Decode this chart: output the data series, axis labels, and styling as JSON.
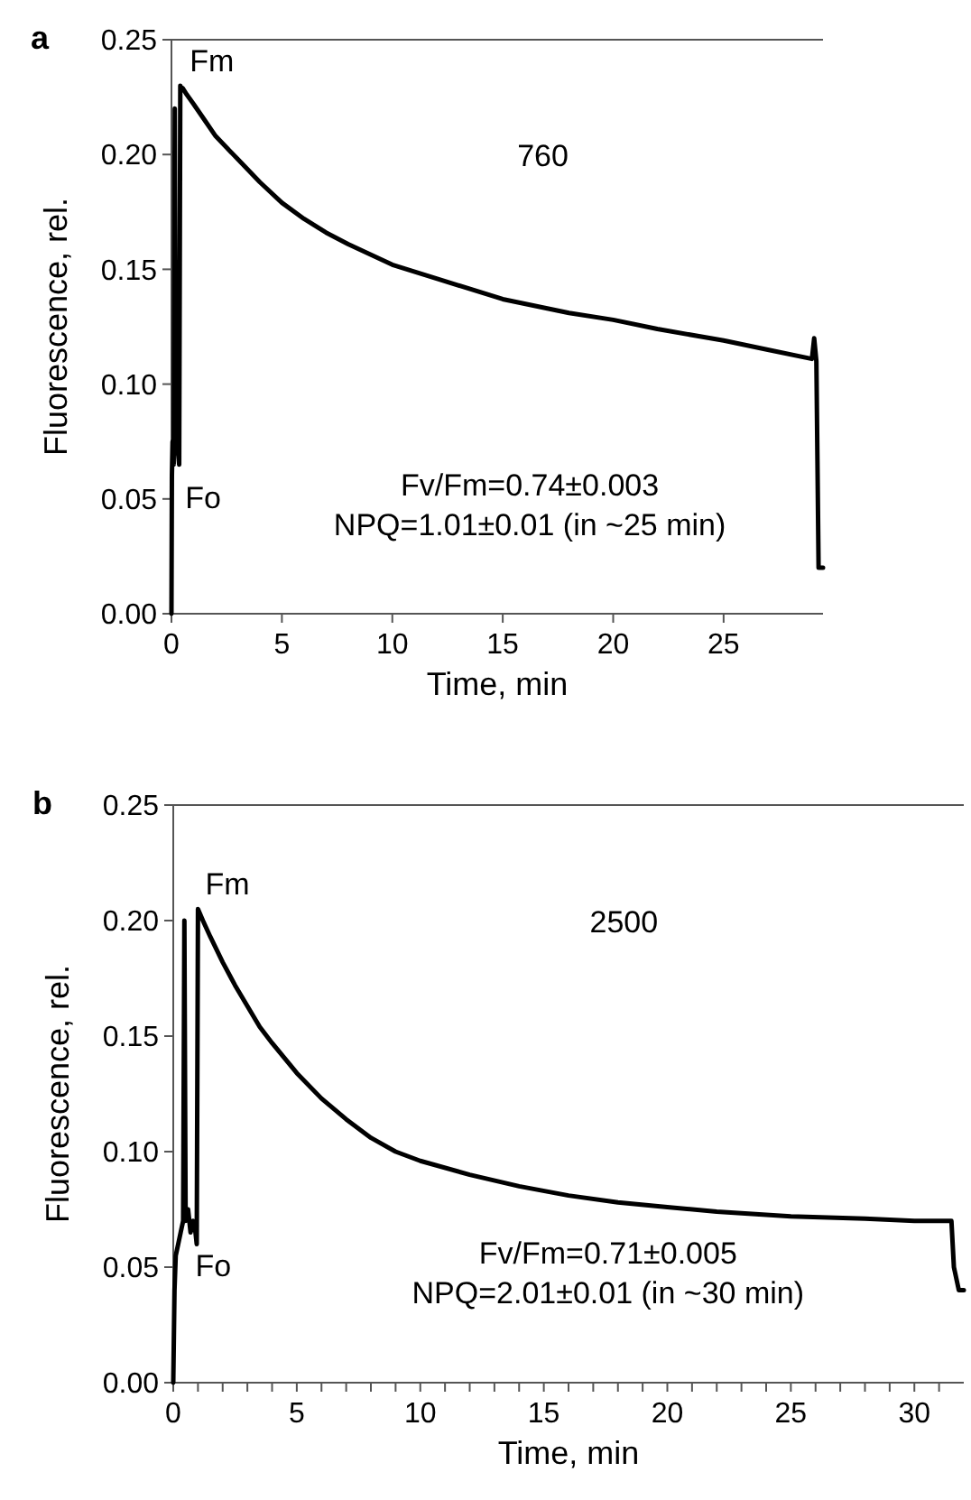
{
  "chart_data": [
    {
      "type": "line",
      "title": "a",
      "xlabel": "Time, min",
      "ylabel": "Fluorescence, rel.",
      "xlim": [
        0,
        29.5
      ],
      "ylim": [
        0,
        0.25
      ],
      "xticks": [
        0,
        5,
        10,
        15,
        20,
        25
      ],
      "yticks": [
        {
          "value": 0,
          "label": "0.00"
        },
        {
          "value": 0.05,
          "label": "0.05"
        },
        {
          "value": 0.1,
          "label": "0.10"
        },
        {
          "value": 0.15,
          "label": "0.15"
        },
        {
          "value": 0.2,
          "label": "0.20"
        },
        {
          "value": 0.25,
          "label": "0.25"
        }
      ],
      "grid": false,
      "marker": "none",
      "line_style": "solid",
      "series": [
        {
          "color": "#000000",
          "x": [
            0,
            0.02,
            0.05,
            0.1,
            0.15,
            0.2,
            0.25,
            0.3,
            0.35,
            0.4,
            0.45,
            0.5,
            0.7,
            1,
            1.5,
            2,
            3,
            4,
            5,
            6,
            7,
            8,
            10,
            12,
            15,
            18,
            20,
            22,
            25,
            27,
            29,
            29.1,
            29.2,
            29.3,
            29.5
          ],
          "values": [
            0,
            0.06,
            0.075,
            0.065,
            0.22,
            0.07,
            0.08,
            0.07,
            0.065,
            0.23,
            0.228,
            0.229,
            0.226,
            0.222,
            0.215,
            0.208,
            0.198,
            0.188,
            0.179,
            0.172,
            0.166,
            0.161,
            0.152,
            0.146,
            0.137,
            0.131,
            0.128,
            0.124,
            0.119,
            0.115,
            0.111,
            0.12,
            0.11,
            0.02,
            0.02
          ]
        }
      ],
      "annotations": [
        {
          "text": "Fm",
          "x": 0.5,
          "y": 0.23
        },
        {
          "text": "Fo",
          "x": 0.3,
          "y": 0.065
        },
        "760",
        "Fv/Fm=0.74±0.003",
        "NPQ=1.01±0.01 (in ~25 min)"
      ]
    },
    {
      "type": "line",
      "title": "b",
      "xlabel": "Time, min",
      "ylabel": "Fluorescence, rel.",
      "xlim": [
        0,
        32
      ],
      "ylim": [
        0,
        0.25
      ],
      "xticks": [
        0,
        {
          "value": 1,
          "label": null
        },
        {
          "value": 2,
          "label": null
        },
        {
          "value": 3,
          "label": null
        },
        {
          "value": 4,
          "label": null
        },
        5,
        {
          "value": 6,
          "label": null
        },
        {
          "value": 7,
          "label": null
        },
        {
          "value": 8,
          "label": null
        },
        {
          "value": 9,
          "label": null
        },
        10,
        {
          "value": 11,
          "label": null
        },
        {
          "value": 12,
          "label": null
        },
        {
          "value": 13,
          "label": null
        },
        {
          "value": 14,
          "label": null
        },
        15,
        {
          "value": 16,
          "label": null
        },
        {
          "value": 17,
          "label": null
        },
        {
          "value": 18,
          "label": null
        },
        {
          "value": 19,
          "label": null
        },
        20,
        {
          "value": 21,
          "label": null
        },
        {
          "value": 22,
          "label": null
        },
        {
          "value": 23,
          "label": null
        },
        {
          "value": 24,
          "label": null
        },
        25,
        {
          "value": 26,
          "label": null
        },
        {
          "value": 27,
          "label": null
        },
        {
          "value": 28,
          "label": null
        },
        {
          "value": 29,
          "label": null
        },
        30,
        {
          "value": 31,
          "label": null
        }
      ],
      "yticks": [
        {
          "value": 0,
          "label": "0.00"
        },
        {
          "value": 0.05,
          "label": "0.05"
        },
        {
          "value": 0.1,
          "label": "0.10"
        },
        {
          "value": 0.15,
          "label": "0.15"
        },
        {
          "value": 0.2,
          "label": "0.20"
        },
        {
          "value": 0.25,
          "label": "0.25"
        }
      ],
      "grid": false,
      "marker": "none",
      "line_style": "solid",
      "series": [
        {
          "color": "#000000",
          "x": [
            0,
            0.05,
            0.1,
            0.2,
            0.3,
            0.4,
            0.45,
            0.5,
            0.6,
            0.7,
            0.8,
            0.9,
            0.95,
            1,
            1.2,
            1.5,
            2,
            2.5,
            3,
            3.5,
            4,
            5,
            6,
            7,
            8,
            9,
            10,
            12,
            14,
            16,
            18,
            20,
            22,
            25,
            28,
            30,
            31.5,
            31.6,
            31.8,
            32
          ],
          "values": [
            0,
            0.04,
            0.055,
            0.06,
            0.065,
            0.07,
            0.2,
            0.07,
            0.075,
            0.065,
            0.07,
            0.065,
            0.06,
            0.205,
            0.2,
            0.193,
            0.182,
            0.172,
            0.163,
            0.154,
            0.147,
            0.134,
            0.123,
            0.114,
            0.106,
            0.1,
            0.096,
            0.09,
            0.085,
            0.081,
            0.078,
            0.076,
            0.074,
            0.072,
            0.071,
            0.07,
            0.07,
            0.05,
            0.04,
            0.04
          ]
        }
      ],
      "annotations": [
        {
          "text": "Fm",
          "x": 1,
          "y": 0.205
        },
        {
          "text": "Fo",
          "x": 0.6,
          "y": 0.065
        },
        "2500",
        "Fv/Fm=0.71±0.005",
        "NPQ=2.01±0.01 (in ~30 min)"
      ]
    }
  ]
}
